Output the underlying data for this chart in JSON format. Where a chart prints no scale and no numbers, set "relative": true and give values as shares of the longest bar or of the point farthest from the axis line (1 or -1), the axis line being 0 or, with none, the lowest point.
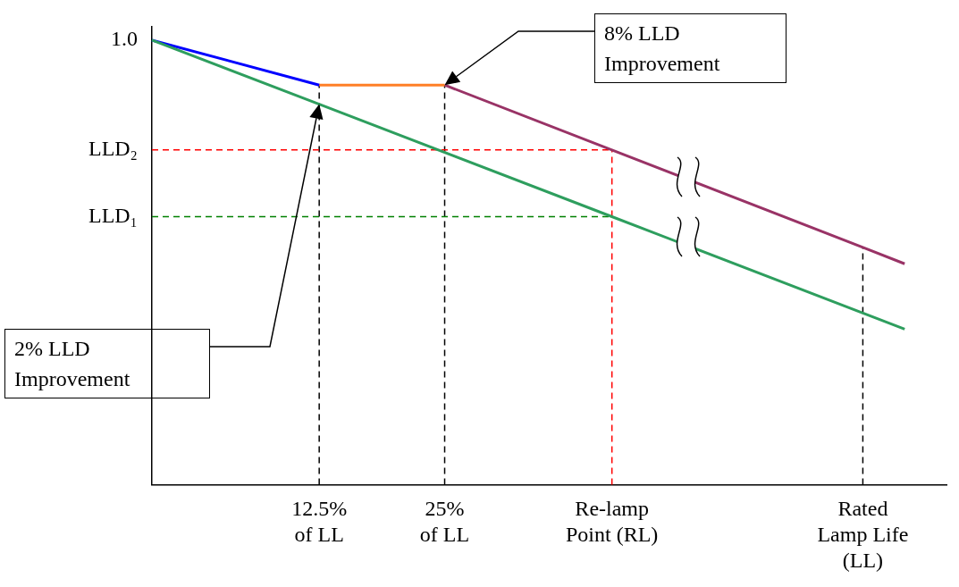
{
  "chart_data": {
    "type": "line",
    "relative": true,
    "categories": [
      null,
      null,
      null,
      null,
      "12.5%\nof LL",
      null,
      null,
      "25%\nof LL",
      null,
      null,
      null,
      "Re-lamp\nPoint (RL)",
      null,
      null,
      null,
      null,
      null,
      "Rated\nLamp Life\n(LL)",
      null,
      null
    ],
    "grid": false,
    "legend": false,
    "marker": "none",
    "series": [
      {
        "color": "#2e9e5e",
        "values": [
          1.0,
          null,
          null,
          null,
          0.856,
          null,
          null,
          null,
          null,
          null,
          null,
          0.603,
          null,
          null,
          null,
          null,
          null,
          null,
          0.35,
          null
        ],
        "line_style": "solid"
      },
      {
        "color": "#0000ff",
        "values": [
          1.0,
          null,
          null,
          null,
          0.899,
          null,
          null,
          null,
          null,
          null,
          null,
          null,
          null,
          null,
          null,
          null,
          null,
          null,
          null,
          null
        ],
        "line_style": "solid"
      },
      {
        "color": "#ff7f27",
        "values": [
          null,
          null,
          null,
          null,
          0.899,
          null,
          null,
          0.899,
          null,
          null,
          null,
          null,
          null,
          null,
          null,
          null,
          null,
          null,
          null,
          null
        ],
        "line_style": "solid"
      },
      {
        "color": "#993366",
        "values": [
          null,
          null,
          null,
          null,
          null,
          null,
          null,
          0.899,
          null,
          null,
          null,
          0.753,
          null,
          null,
          null,
          null,
          null,
          0.534,
          0.497,
          null
        ],
        "line_style": "solid"
      },
      {
        "color": "#ff0000",
        "values": [
          0.753,
          null,
          null,
          null,
          null,
          null,
          null,
          null,
          null,
          null,
          null,
          0.753,
          null,
          null,
          null,
          null,
          null,
          null,
          null,
          null
        ],
        "line_style": "dashed"
      },
      {
        "color": "#008000",
        "values": [
          0.603,
          null,
          null,
          null,
          null,
          null,
          null,
          null,
          null,
          null,
          null,
          0.603,
          null,
          null,
          null,
          null,
          null,
          null,
          null,
          null
        ],
        "line_style": "dashed"
      }
    ],
    "ref_lines": [
      {
        "axis": "x",
        "value": "12.5%\nof LL",
        "color": "#000000",
        "line_style": "dashed"
      },
      {
        "axis": "x",
        "value": "25%\nof LL",
        "color": "#000000",
        "line_style": "dashed"
      },
      {
        "axis": "x",
        "value": "Re-lamp\nPoint (RL)",
        "color": "#ff0000",
        "line_style": "dashed"
      },
      {
        "axis": "x",
        "value": "Rated\nLamp Life\n(LL)",
        "color": "#000000",
        "line_style": "dashed"
      }
    ],
    "annotations": [
      "1.0",
      "LLD₂",
      "LLD₁",
      "8% LLD Improvement",
      "2% LLD Improvement"
    ]
  }
}
